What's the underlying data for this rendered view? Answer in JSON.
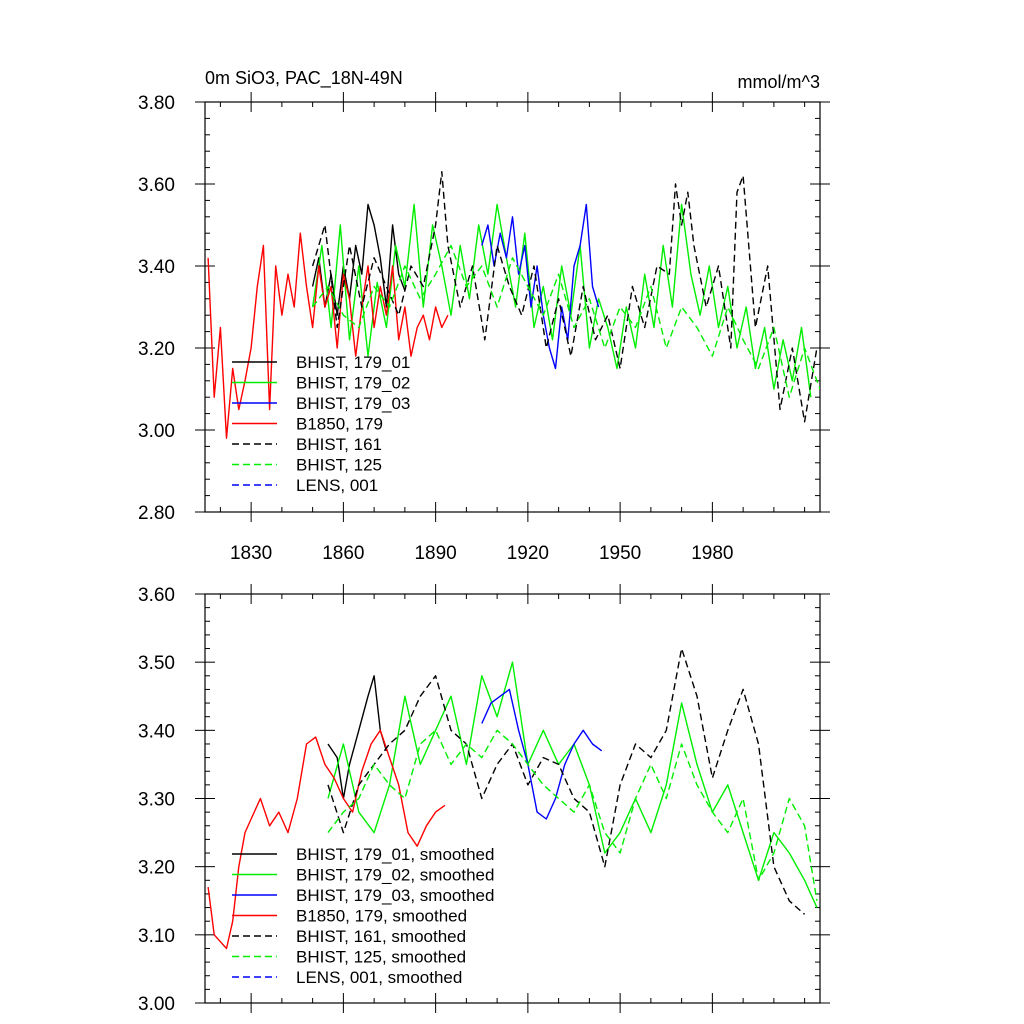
{
  "chart_data": [
    {
      "type": "line",
      "title": "0m SiO3, PAC_18N-49N",
      "units": "mmol/m^3",
      "xlim": [
        1815,
        2015
      ],
      "ylim": [
        2.8,
        3.8
      ],
      "x_ticks": [
        1830,
        1860,
        1890,
        1920,
        1950,
        1980
      ],
      "y_ticks": [
        2.8,
        3.0,
        3.2,
        3.4,
        3.6,
        3.8
      ],
      "y_ticks_text": [
        "2.80",
        "3.00",
        "3.20",
        "3.40",
        "3.60",
        "3.80"
      ],
      "legend": [
        "BHIST, 179_01",
        "BHIST, 179_02",
        "BHIST, 179_03",
        "B1850, 179",
        "BHIST, 161",
        "BHIST, 125",
        "LENS, 001"
      ],
      "series": [
        {
          "name": "BHIST, 179_01",
          "color": "#000000",
          "dash": false,
          "x": [
            1850,
            1852,
            1854,
            1856,
            1858,
            1860,
            1862,
            1864,
            1866,
            1868,
            1870,
            1872,
            1874,
            1876,
            1878,
            1880
          ],
          "values": [
            3.35,
            3.42,
            3.3,
            3.38,
            3.28,
            3.4,
            3.32,
            3.45,
            3.38,
            3.55,
            3.5,
            3.42,
            3.3,
            3.5,
            3.38,
            3.34
          ]
        },
        {
          "name": "BHIST, 179_02",
          "color": "#00ee00",
          "dash": false,
          "x": [
            1850,
            1853,
            1856,
            1859,
            1862,
            1865,
            1868,
            1871,
            1874,
            1877,
            1880,
            1883,
            1886,
            1889,
            1892,
            1895,
            1898,
            1901,
            1904,
            1907,
            1910,
            1913,
            1916,
            1919,
            1922,
            1925,
            1928,
            1931,
            1934,
            1937,
            1940,
            1943,
            1946,
            1949,
            1952,
            1955,
            1958,
            1961,
            1964,
            1967,
            1970,
            1973,
            1976,
            1979,
            1982,
            1985,
            1988,
            1991,
            1994,
            1997,
            2000,
            2003,
            2006,
            2009,
            2012
          ],
          "values": [
            3.3,
            3.45,
            3.25,
            3.5,
            3.22,
            3.4,
            3.18,
            3.36,
            3.25,
            3.45,
            3.35,
            3.55,
            3.3,
            3.5,
            3.4,
            3.28,
            3.45,
            3.32,
            3.5,
            3.38,
            3.55,
            3.42,
            3.3,
            3.48,
            3.25,
            3.35,
            3.22,
            3.4,
            3.28,
            3.45,
            3.2,
            3.32,
            3.25,
            3.15,
            3.3,
            3.2,
            3.38,
            3.25,
            3.45,
            3.3,
            3.55,
            3.38,
            3.28,
            3.4,
            3.25,
            3.35,
            3.2,
            3.3,
            3.15,
            3.25,
            3.1,
            3.22,
            3.12,
            3.25,
            3.08
          ]
        },
        {
          "name": "BHIST, 179_03",
          "color": "#0000ff",
          "dash": false,
          "x": [
            1905,
            1907,
            1909,
            1911,
            1913,
            1915,
            1917,
            1919,
            1921,
            1923,
            1925,
            1927,
            1929,
            1931,
            1933,
            1935,
            1937,
            1939,
            1941,
            1943
          ],
          "values": [
            3.45,
            3.5,
            3.4,
            3.48,
            3.42,
            3.52,
            3.38,
            3.45,
            3.3,
            3.4,
            3.28,
            3.2,
            3.15,
            3.3,
            3.22,
            3.4,
            3.45,
            3.55,
            3.35,
            3.3
          ]
        },
        {
          "name": "B1850, 179",
          "color": "#ff0000",
          "dash": false,
          "x": [
            1816,
            1818,
            1820,
            1822,
            1824,
            1826,
            1828,
            1830,
            1832,
            1834,
            1836,
            1838,
            1840,
            1842,
            1844,
            1846,
            1848,
            1850,
            1852,
            1854,
            1856,
            1858,
            1860,
            1862,
            1864,
            1866,
            1868,
            1870,
            1872,
            1874,
            1876,
            1878,
            1880,
            1882,
            1884,
            1886,
            1888,
            1890,
            1892,
            1894
          ],
          "values": [
            3.42,
            3.08,
            3.25,
            2.98,
            3.15,
            3.05,
            3.12,
            3.2,
            3.35,
            3.45,
            3.05,
            3.4,
            3.28,
            3.38,
            3.3,
            3.48,
            3.35,
            3.25,
            3.4,
            3.3,
            3.35,
            3.2,
            3.38,
            3.32,
            3.18,
            3.3,
            3.4,
            3.25,
            3.35,
            3.28,
            3.4,
            3.22,
            3.3,
            3.18,
            3.25,
            3.28,
            3.22,
            3.3,
            3.25,
            3.28
          ]
        },
        {
          "name": "BHIST, 161",
          "color": "#000000",
          "dash": true,
          "x": [
            1850,
            1854,
            1858,
            1862,
            1866,
            1870,
            1874,
            1878,
            1882,
            1886,
            1890,
            1892,
            1894,
            1898,
            1902,
            1906,
            1910,
            1914,
            1918,
            1922,
            1926,
            1930,
            1934,
            1938,
            1942,
            1946,
            1950,
            1954,
            1958,
            1962,
            1966,
            1968,
            1970,
            1972,
            1974,
            1978,
            1982,
            1986,
            1988,
            1990,
            1994,
            1998,
            2002,
            2006,
            2010,
            2014
          ],
          "values": [
            3.4,
            3.5,
            3.25,
            3.45,
            3.3,
            3.42,
            3.35,
            3.28,
            3.4,
            3.35,
            3.5,
            3.63,
            3.45,
            3.3,
            3.4,
            3.22,
            3.45,
            3.35,
            3.28,
            3.4,
            3.2,
            3.32,
            3.18,
            3.35,
            3.22,
            3.28,
            3.15,
            3.35,
            3.25,
            3.4,
            3.38,
            3.6,
            3.5,
            3.58,
            3.45,
            3.3,
            3.4,
            3.2,
            3.58,
            3.62,
            3.25,
            3.4,
            3.05,
            3.2,
            3.02,
            3.2
          ]
        },
        {
          "name": "BHIST, 125",
          "color": "#00ee00",
          "dash": true,
          "x": [
            1850,
            1855,
            1860,
            1865,
            1870,
            1875,
            1880,
            1885,
            1890,
            1895,
            1900,
            1905,
            1910,
            1915,
            1920,
            1925,
            1930,
            1935,
            1940,
            1945,
            1950,
            1955,
            1960,
            1965,
            1970,
            1975,
            1980,
            1985,
            1990,
            1995,
            2000,
            2005,
            2010,
            2015
          ],
          "values": [
            3.3,
            3.35,
            3.28,
            3.25,
            3.35,
            3.3,
            3.4,
            3.32,
            3.38,
            3.45,
            3.35,
            3.4,
            3.3,
            3.42,
            3.35,
            3.28,
            3.38,
            3.25,
            3.32,
            3.2,
            3.3,
            3.25,
            3.35,
            3.2,
            3.3,
            3.25,
            3.18,
            3.3,
            3.22,
            3.15,
            3.25,
            3.08,
            3.2,
            3.1
          ]
        },
        {
          "name": "LENS, 001",
          "color": "#0000ff",
          "dash": true,
          "x": [],
          "values": []
        }
      ]
    },
    {
      "type": "line",
      "xlim": [
        1815,
        2015
      ],
      "ylim": [
        3.0,
        3.6
      ],
      "y_ticks": [
        3.0,
        3.1,
        3.2,
        3.3,
        3.4,
        3.5,
        3.6
      ],
      "y_ticks_text": [
        "3.00",
        "3.10",
        "3.20",
        "3.30",
        "3.40",
        "3.50",
        "3.60"
      ],
      "legend": [
        "BHIST, 179_01, smoothed",
        "BHIST, 179_02, smoothed",
        "BHIST, 179_03, smoothed",
        "B1850, 179, smoothed",
        "BHIST, 161, smoothed",
        "BHIST, 125, smoothed",
        "LENS, 001, smoothed"
      ],
      "series": [
        {
          "name": "BHIST, 179_01, smoothed",
          "color": "#000000",
          "dash": false,
          "x": [
            1855,
            1858,
            1860,
            1862,
            1865,
            1868,
            1870,
            1872,
            1874
          ],
          "values": [
            3.38,
            3.36,
            3.3,
            3.35,
            3.4,
            3.45,
            3.48,
            3.4,
            3.37
          ]
        },
        {
          "name": "BHIST, 179_02, smoothed",
          "color": "#00ee00",
          "dash": false,
          "x": [
            1855,
            1860,
            1865,
            1870,
            1875,
            1880,
            1885,
            1890,
            1895,
            1900,
            1905,
            1910,
            1915,
            1920,
            1925,
            1930,
            1935,
            1940,
            1945,
            1950,
            1955,
            1960,
            1965,
            1970,
            1975,
            1980,
            1985,
            1990,
            1995,
            2000,
            2005,
            2010,
            2014
          ],
          "values": [
            3.3,
            3.38,
            3.28,
            3.25,
            3.32,
            3.45,
            3.35,
            3.4,
            3.45,
            3.35,
            3.48,
            3.42,
            3.5,
            3.35,
            3.4,
            3.35,
            3.38,
            3.32,
            3.22,
            3.25,
            3.3,
            3.25,
            3.32,
            3.44,
            3.35,
            3.28,
            3.32,
            3.25,
            3.18,
            3.25,
            3.22,
            3.18,
            3.14
          ]
        },
        {
          "name": "BHIST, 179_03, smoothed",
          "color": "#0000ff",
          "dash": false,
          "x": [
            1905,
            1908,
            1911,
            1914,
            1917,
            1920,
            1923,
            1926,
            1929,
            1932,
            1935,
            1938,
            1941,
            1944
          ],
          "values": [
            3.41,
            3.44,
            3.45,
            3.46,
            3.4,
            3.35,
            3.28,
            3.27,
            3.3,
            3.35,
            3.38,
            3.4,
            3.38,
            3.37
          ]
        },
        {
          "name": "B1850, 179, smoothed",
          "color": "#ff0000",
          "dash": false,
          "x": [
            1816,
            1818,
            1820,
            1822,
            1824,
            1826,
            1828,
            1830,
            1833,
            1836,
            1839,
            1842,
            1845,
            1848,
            1851,
            1854,
            1857,
            1860,
            1863,
            1866,
            1869,
            1872,
            1875,
            1878,
            1881,
            1884,
            1887,
            1890,
            1893
          ],
          "values": [
            3.17,
            3.1,
            3.09,
            3.08,
            3.12,
            3.2,
            3.25,
            3.27,
            3.3,
            3.26,
            3.28,
            3.25,
            3.3,
            3.38,
            3.39,
            3.35,
            3.33,
            3.3,
            3.28,
            3.34,
            3.38,
            3.4,
            3.36,
            3.32,
            3.25,
            3.23,
            3.26,
            3.28,
            3.29
          ]
        },
        {
          "name": "BHIST, 161, smoothed",
          "color": "#000000",
          "dash": true,
          "x": [
            1855,
            1860,
            1865,
            1870,
            1875,
            1880,
            1885,
            1890,
            1895,
            1900,
            1905,
            1910,
            1915,
            1920,
            1925,
            1930,
            1935,
            1940,
            1945,
            1950,
            1955,
            1960,
            1965,
            1970,
            1975,
            1980,
            1985,
            1990,
            1995,
            2000,
            2005,
            2010
          ],
          "values": [
            3.32,
            3.25,
            3.32,
            3.35,
            3.38,
            3.4,
            3.45,
            3.48,
            3.4,
            3.38,
            3.3,
            3.35,
            3.38,
            3.32,
            3.36,
            3.35,
            3.3,
            3.28,
            3.2,
            3.32,
            3.38,
            3.36,
            3.4,
            3.52,
            3.45,
            3.33,
            3.4,
            3.46,
            3.38,
            3.2,
            3.15,
            3.13
          ]
        },
        {
          "name": "BHIST, 125, smoothed",
          "color": "#00ee00",
          "dash": true,
          "x": [
            1855,
            1860,
            1865,
            1870,
            1875,
            1880,
            1885,
            1890,
            1895,
            1900,
            1905,
            1910,
            1915,
            1920,
            1925,
            1930,
            1935,
            1940,
            1945,
            1950,
            1955,
            1960,
            1965,
            1970,
            1975,
            1980,
            1985,
            1990,
            1995,
            2000,
            2005,
            2010,
            2014
          ],
          "values": [
            3.25,
            3.28,
            3.3,
            3.35,
            3.32,
            3.3,
            3.38,
            3.4,
            3.35,
            3.38,
            3.36,
            3.4,
            3.38,
            3.35,
            3.32,
            3.3,
            3.28,
            3.32,
            3.25,
            3.22,
            3.3,
            3.35,
            3.3,
            3.38,
            3.32,
            3.28,
            3.25,
            3.3,
            3.18,
            3.22,
            3.3,
            3.26,
            3.15
          ]
        },
        {
          "name": "LENS, 001, smoothed",
          "color": "#0000ff",
          "dash": true,
          "x": [],
          "values": []
        }
      ]
    }
  ]
}
